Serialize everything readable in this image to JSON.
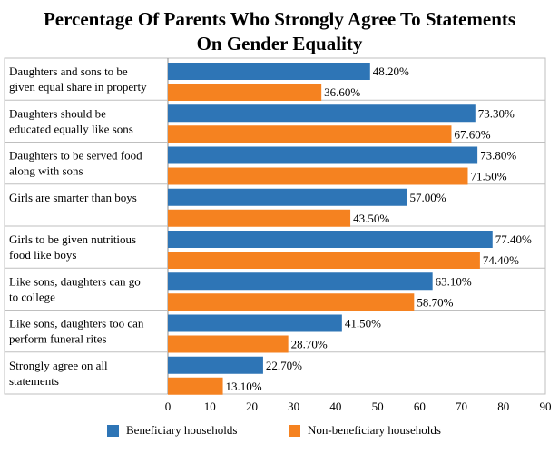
{
  "chart_data": {
    "type": "bar",
    "orientation": "horizontal",
    "title_lines": [
      "Percentage Of Parents Who Strongly Agree To Statements",
      "On Gender Equality"
    ],
    "categories": [
      [
        "Daughters and sons to be",
        "given equal share in property"
      ],
      [
        "Daughters should be",
        "educated equally like sons"
      ],
      [
        "Daughters to be served food",
        "along with sons"
      ],
      [
        "Girls are smarter than boys"
      ],
      [
        "Girls to be given nutritious",
        "food like boys"
      ],
      [
        "Like sons, daughters can go",
        "to college"
      ],
      [
        "Like sons, daughters too can",
        "perform funeral rites"
      ],
      [
        "Strongly agree on all",
        "statements"
      ]
    ],
    "series": [
      {
        "name": "Beneficiary households",
        "color": "#2E75B6",
        "values": [
          48.2,
          73.3,
          73.8,
          57.0,
          77.4,
          63.1,
          41.5,
          22.7
        ],
        "labels": [
          "48.20%",
          "73.30%",
          "73.80%",
          "57.00%",
          "77.40%",
          "63.10%",
          "41.50%",
          "22.70%"
        ]
      },
      {
        "name": "Non-beneficiary households",
        "color": "#F58220",
        "values": [
          36.6,
          67.6,
          71.5,
          43.5,
          74.4,
          58.7,
          28.7,
          13.1
        ],
        "labels": [
          "36.60%",
          "67.60%",
          "71.50%",
          "43.50%",
          "74.40%",
          "58.70%",
          "28.70%",
          "13.10%"
        ]
      }
    ],
    "xlim": [
      0,
      90
    ],
    "xticks": [
      0,
      10,
      20,
      30,
      40,
      50,
      60,
      70,
      80,
      90
    ],
    "grid": false,
    "legend_position": "bottom"
  }
}
